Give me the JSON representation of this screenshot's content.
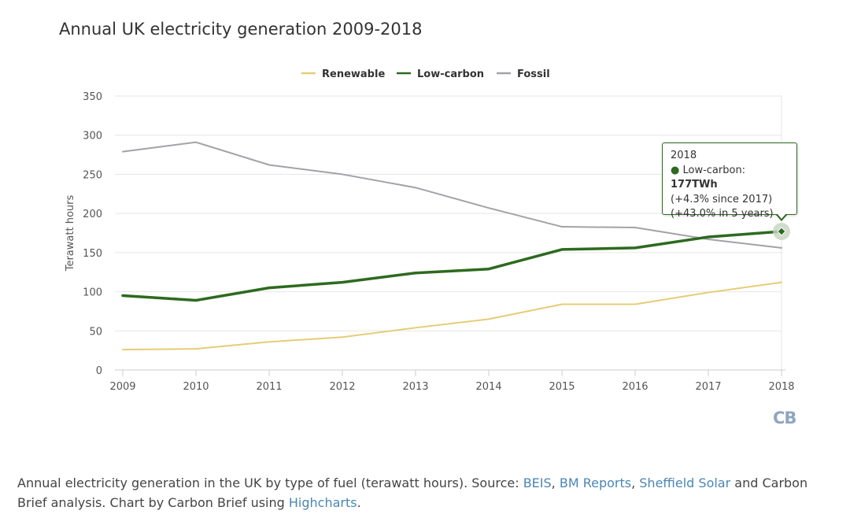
{
  "title": "Annual UK electricity generation 2009-2018",
  "chart_data": {
    "type": "line",
    "x": [
      2009,
      2010,
      2011,
      2012,
      2013,
      2014,
      2015,
      2016,
      2017,
      2018
    ],
    "series": [
      {
        "name": "Renewable",
        "color": "#e6cc75",
        "values": [
          26,
          27,
          36,
          42,
          54,
          65,
          84,
          84,
          99,
          112
        ]
      },
      {
        "name": "Low-carbon",
        "color": "#2d6a1f",
        "values": [
          95,
          89,
          105,
          112,
          124,
          129,
          154,
          156,
          170,
          177
        ]
      },
      {
        "name": "Fossil",
        "color": "#a5a1a8",
        "values": [
          279,
          291,
          262,
          250,
          233,
          207,
          183,
          182,
          167,
          156
        ]
      }
    ],
    "xlabel": "",
    "ylabel": "Terawatt hours",
    "ylim": [
      0,
      350
    ],
    "yticks": [
      0,
      50,
      100,
      150,
      200,
      250,
      300,
      350
    ],
    "grid": true,
    "legend_position": "top-center"
  },
  "tooltip": {
    "year": "2018",
    "series_label": "Low-carbon: ",
    "value": "177TWh",
    "line2": "(+4.3% since 2017)",
    "line3": "(+43.0% in 5 years)"
  },
  "logo": "CB",
  "caption": {
    "text1": "Annual electricity generation in the UK by type of fuel (terawatt hours). Source: ",
    "link1": "BEIS",
    "sep1": ", ",
    "link2": "BM Reports",
    "sep2": ", ",
    "link3": "Sheffield Solar",
    "text2": " and Carbon Brief analysis. Chart by Carbon Brief using ",
    "link4": "Highcharts",
    "text3": "."
  }
}
